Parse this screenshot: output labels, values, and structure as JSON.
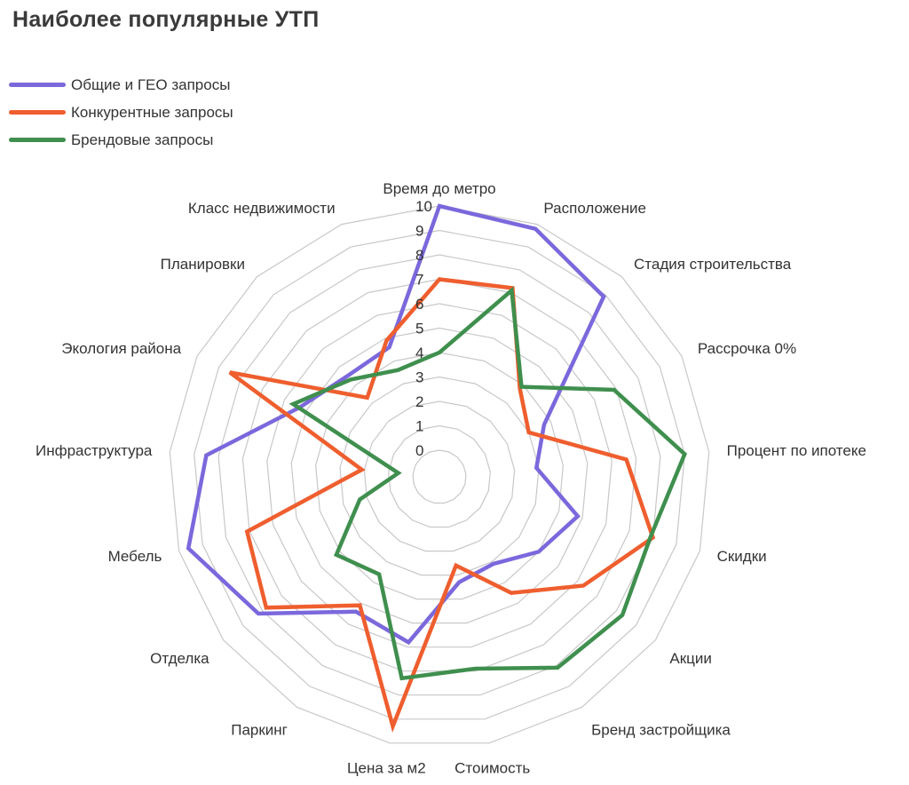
{
  "chart_data": {
    "type": "radar",
    "title": "Наиболее популярные УТП",
    "categories": [
      "Время до метро",
      "Расположение",
      "Стадия строительства",
      "Рассрочка 0%",
      "Процент по ипотеке",
      "Скидки",
      "Акции",
      "Бренд застройщика",
      "Стоимость",
      "Цена за м2",
      "Паркинг",
      "Отделка",
      "Мебель",
      "Инфраструктура",
      "Экология района",
      "Планировки",
      "Класс недвижимости"
    ],
    "rlim": [
      0,
      10
    ],
    "ticks": [
      "0",
      "1",
      "2",
      "3",
      "4",
      "5",
      "6",
      "7",
      "8",
      "9",
      "10"
    ],
    "legend_position": "top-left",
    "series": [
      {
        "name": "Общие и ГЕО запросы",
        "color": "#7b68dc",
        "values": [
          10,
          9.8,
          8.9,
          3.7,
          2.9,
          4.8,
          4.0,
          3.1,
          3.3,
          5.8,
          5.4,
          8.2,
          9.6,
          8.5,
          5.3,
          4.5,
          4.6
        ]
      },
      {
        "name": "Конкурентные запросы",
        "color": "#ef5e2e",
        "values": [
          7.0,
          7.2,
          3.8,
          3.0,
          6.6,
          8.0,
          6.3,
          4.5,
          2.6,
          9.3,
          5.1,
          7.8,
          7.1,
          2.1,
          8.5,
          3.3,
          4.9
        ]
      },
      {
        "name": "Брендовые запросы",
        "color": "#3f8f4e",
        "values": [
          4.0,
          7.1,
          3.9,
          6.9,
          9.0,
          7.9,
          8.3,
          8.1,
          6.9,
          7.3,
          3.6,
          4.2,
          2.3,
          0.6,
          5.6,
          4.3,
          3.6
        ]
      }
    ]
  }
}
